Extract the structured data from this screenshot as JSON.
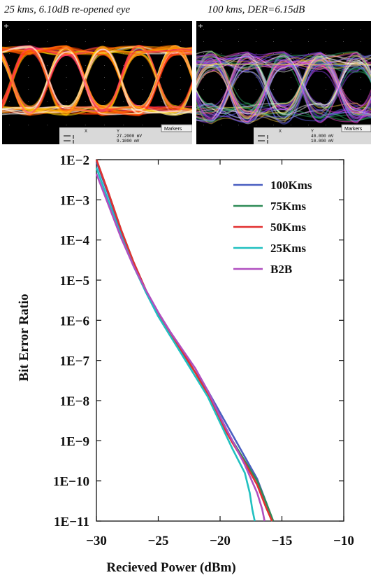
{
  "captions": {
    "left": "25 kms, 6.10dB re-opened eye",
    "right": "100 kms, DER=6.15dB"
  },
  "scopes": {
    "left": {
      "markers_label": "Markers",
      "readout_x": "X",
      "readout_y": "Y",
      "value_1": "27.2000 mV",
      "value_2": "9.1000 mV"
    },
    "right": {
      "markers_label": "Markers",
      "readout_x": "X",
      "readout_y": "Y",
      "value_1": "40.000 mV",
      "value_2": "10.000 mV"
    }
  },
  "chart_data": {
    "type": "line",
    "xlabel": "Recieved Power (dBm)",
    "ylabel": "Bit Error Ratio",
    "xlim": [
      -30,
      -10
    ],
    "ylim_log10": [
      -11,
      -2
    ],
    "y_scale": "log",
    "grid": false,
    "legend_position": "top-right",
    "x_ticks": [
      "−30",
      "−25",
      "−20",
      "−15",
      "−10"
    ],
    "y_ticks": [
      "1E−2",
      "1E−3",
      "1E−4",
      "1E−5",
      "1E−6",
      "1E−7",
      "1E−8",
      "1E−9",
      "1E−10",
      "1E−11"
    ],
    "series": [
      {
        "name": "100Kms",
        "color": "#4a5fc1",
        "points": [
          [
            -30,
            -2.05
          ],
          [
            -29,
            -2.9
          ],
          [
            -28,
            -3.8
          ],
          [
            -27,
            -4.6
          ],
          [
            -26,
            -5.3
          ],
          [
            -25,
            -5.9
          ],
          [
            -24,
            -6.4
          ],
          [
            -23,
            -6.85
          ],
          [
            -22,
            -7.3
          ],
          [
            -21,
            -7.75
          ],
          [
            -20,
            -8.3
          ],
          [
            -19,
            -8.85
          ],
          [
            -18,
            -9.4
          ],
          [
            -17,
            -9.95
          ],
          [
            -16.2,
            -10.6
          ],
          [
            -15.8,
            -11
          ]
        ]
      },
      {
        "name": "75Kms",
        "color": "#2e8b57",
        "points": [
          [
            -30,
            -2.0
          ],
          [
            -29,
            -2.85
          ],
          [
            -28,
            -3.75
          ],
          [
            -27,
            -4.55
          ],
          [
            -26,
            -5.25
          ],
          [
            -25,
            -5.85
          ],
          [
            -24,
            -6.35
          ],
          [
            -23,
            -6.8
          ],
          [
            -22,
            -7.3
          ],
          [
            -21,
            -7.85
          ],
          [
            -20,
            -8.45
          ],
          [
            -19,
            -9.0
          ],
          [
            -18,
            -9.5
          ],
          [
            -17,
            -10.0
          ],
          [
            -16.2,
            -10.6
          ],
          [
            -15.7,
            -11
          ]
        ]
      },
      {
        "name": "50Kms",
        "color": "#e23030",
        "points": [
          [
            -30,
            -2.0
          ],
          [
            -29,
            -2.85
          ],
          [
            -28,
            -3.75
          ],
          [
            -27,
            -4.55
          ],
          [
            -26,
            -5.25
          ],
          [
            -25,
            -5.85
          ],
          [
            -24,
            -6.35
          ],
          [
            -23,
            -6.8
          ],
          [
            -22,
            -7.3
          ],
          [
            -21,
            -7.85
          ],
          [
            -20,
            -8.5
          ],
          [
            -19,
            -9.05
          ],
          [
            -18,
            -9.55
          ],
          [
            -17,
            -10.1
          ],
          [
            -16.3,
            -10.65
          ],
          [
            -15.8,
            -11
          ]
        ]
      },
      {
        "name": "25Kms",
        "color": "#20c0c0",
        "points": [
          [
            -30,
            -2.2
          ],
          [
            -29,
            -3.05
          ],
          [
            -28,
            -3.9
          ],
          [
            -27,
            -4.65
          ],
          [
            -26,
            -5.3
          ],
          [
            -25,
            -5.9
          ],
          [
            -24,
            -6.4
          ],
          [
            -23,
            -6.9
          ],
          [
            -22,
            -7.4
          ],
          [
            -21,
            -7.9
          ],
          [
            -20,
            -8.55
          ],
          [
            -19,
            -9.2
          ],
          [
            -18,
            -9.8
          ],
          [
            -17.6,
            -10.3
          ],
          [
            -17.4,
            -10.7
          ],
          [
            -17.2,
            -11
          ]
        ]
      },
      {
        "name": "B2B",
        "color": "#b04fc0",
        "points": [
          [
            -30,
            -2.35
          ],
          [
            -29,
            -3.15
          ],
          [
            -28,
            -3.95
          ],
          [
            -27,
            -4.65
          ],
          [
            -26,
            -5.25
          ],
          [
            -25,
            -5.8
          ],
          [
            -24,
            -6.3
          ],
          [
            -23,
            -6.75
          ],
          [
            -22,
            -7.2
          ],
          [
            -21,
            -7.75
          ],
          [
            -20,
            -8.4
          ],
          [
            -19,
            -9.0
          ],
          [
            -18,
            -9.6
          ],
          [
            -17,
            -10.3
          ],
          [
            -16.6,
            -10.7
          ],
          [
            -16.4,
            -11
          ]
        ]
      }
    ]
  }
}
